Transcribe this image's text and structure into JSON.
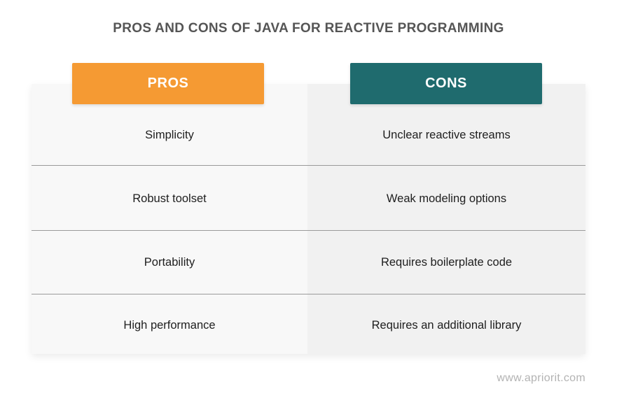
{
  "title": "PROS AND CONS OF JAVA FOR REACTIVE PROGRAMMING",
  "headers": {
    "pros": "PROS",
    "cons": "CONS"
  },
  "rows": [
    {
      "pro": "Simplicity",
      "con": "Unclear reactive streams"
    },
    {
      "pro": "Robust toolset",
      "con": "Weak modeling options"
    },
    {
      "pro": "Portability",
      "con": "Requires boilerplate code"
    },
    {
      "pro": "High performance",
      "con": "Requires an additional library"
    }
  ],
  "footer": "www.apriorit.com",
  "colors": {
    "pros_header": "#f59a33",
    "cons_header": "#1f6b6e",
    "title_text": "#555555",
    "cell_text": "#1e1e1e"
  }
}
